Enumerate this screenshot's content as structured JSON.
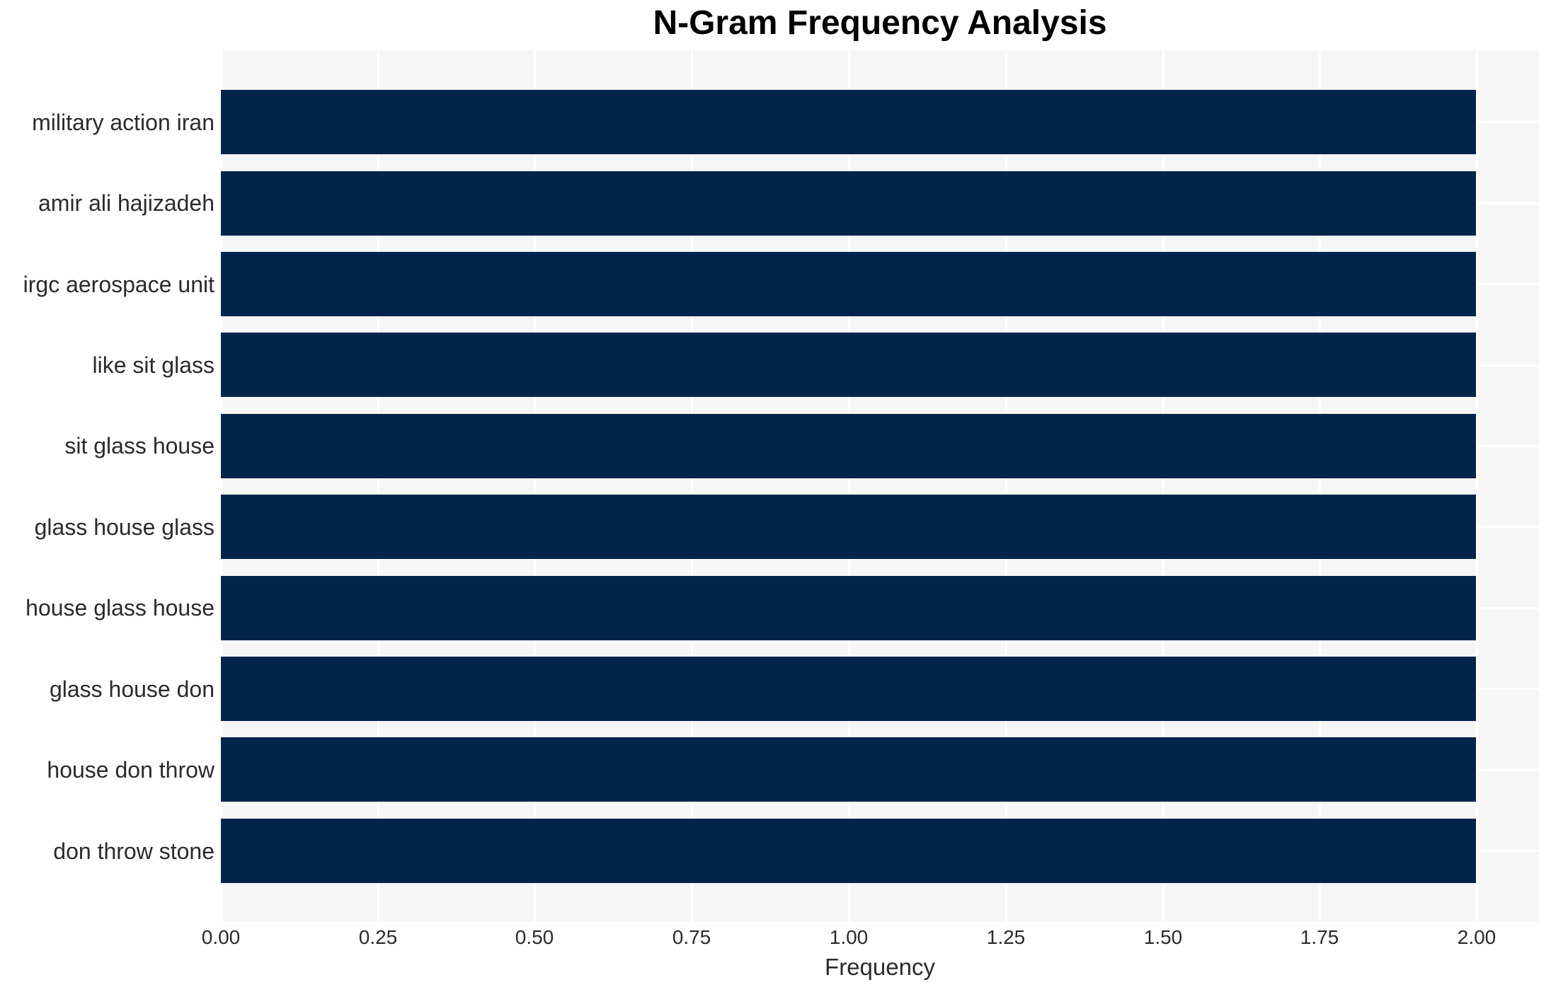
{
  "chart_data": {
    "type": "bar",
    "orientation": "horizontal",
    "title": "N-Gram Frequency Analysis",
    "xlabel": "Frequency",
    "ylabel": "",
    "categories": [
      "military action iran",
      "amir ali hajizadeh",
      "irgc aerospace unit",
      "like sit glass",
      "sit glass house",
      "glass house glass",
      "house glass house",
      "glass house don",
      "house don throw",
      "don throw stone"
    ],
    "values": [
      2,
      2,
      2,
      2,
      2,
      2,
      2,
      2,
      2,
      2
    ],
    "x_ticks": [
      "0.00",
      "0.25",
      "0.50",
      "0.75",
      "1.00",
      "1.25",
      "1.50",
      "1.75",
      "2.00"
    ],
    "xlim": [
      0,
      2.1
    ],
    "grid": true,
    "legend": "none",
    "colors": {
      "bar": "#03254c",
      "plot_background": "#f6f6f6",
      "gridline": "#ffffff",
      "title_text": "#000000",
      "tick_text": "#2b2b2b",
      "figure_background": "#ffffff"
    }
  }
}
